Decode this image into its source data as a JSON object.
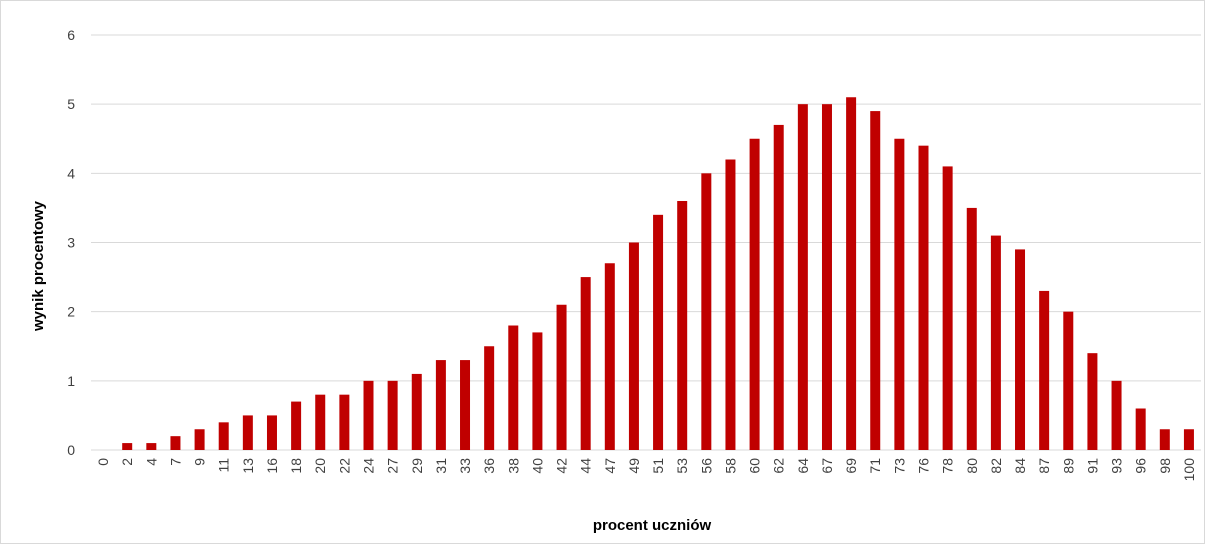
{
  "chart_data": {
    "type": "bar",
    "title": "",
    "xlabel": "procent uczniów",
    "ylabel": "wynik procentowy",
    "ylim": [
      0,
      6
    ],
    "yticks": [
      0,
      1,
      2,
      3,
      4,
      5,
      6
    ],
    "grid": true,
    "legend": "none",
    "bar_color": "#c00000",
    "categories": [
      "0",
      "2",
      "4",
      "7",
      "9",
      "11",
      "13",
      "16",
      "18",
      "20",
      "22",
      "24",
      "27",
      "29",
      "31",
      "33",
      "36",
      "38",
      "40",
      "42",
      "44",
      "47",
      "49",
      "51",
      "53",
      "56",
      "58",
      "60",
      "62",
      "64",
      "67",
      "69",
      "71",
      "73",
      "76",
      "78",
      "80",
      "82",
      "84",
      "87",
      "89",
      "91",
      "93",
      "96",
      "98",
      "100"
    ],
    "values": [
      0,
      0.1,
      0.1,
      0.2,
      0.3,
      0.4,
      0.5,
      0.5,
      0.7,
      0.8,
      0.8,
      1.0,
      1.0,
      1.1,
      1.3,
      1.3,
      1.5,
      1.8,
      1.7,
      2.1,
      2.5,
      2.7,
      3.0,
      3.4,
      3.6,
      4.0,
      4.2,
      4.5,
      4.7,
      5.0,
      5.0,
      5.1,
      4.9,
      4.5,
      4.4,
      4.1,
      3.5,
      3.1,
      2.9,
      2.3,
      2.0,
      1.4,
      1.0,
      0.6,
      0.3,
      0.3
    ]
  }
}
